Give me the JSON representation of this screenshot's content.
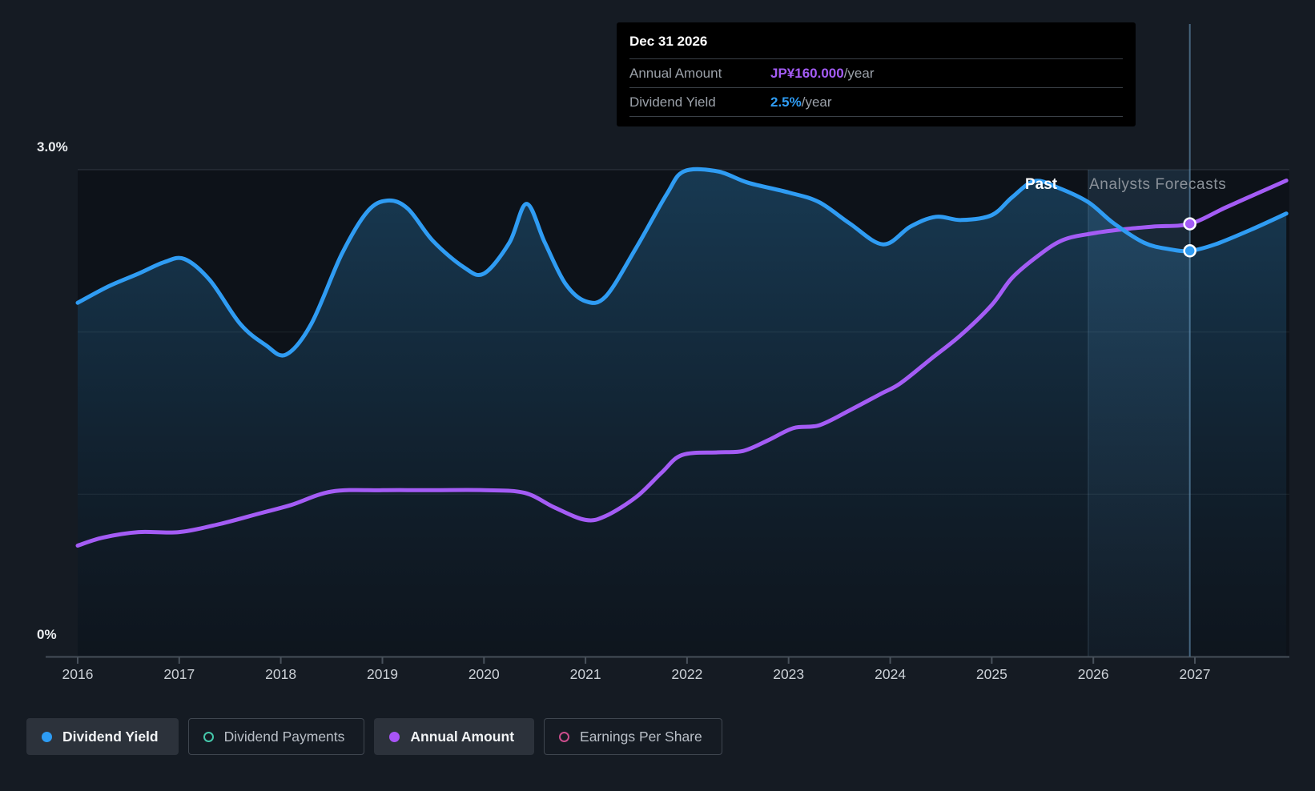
{
  "y_axis_labels": {
    "top": "3.0%",
    "bottom": "0%"
  },
  "region_labels": {
    "past": "Past",
    "forecast": "Analysts Forecasts"
  },
  "tooltip": {
    "title": "Dec 31 2026",
    "rows": [
      {
        "label": "Annual Amount",
        "value": "JP¥160.000",
        "suffix": "/year",
        "value_color": "#A45CF5"
      },
      {
        "label": "Dividend Yield",
        "value": "2.5%",
        "suffix": "/year",
        "value_color": "#2F9CF3"
      }
    ]
  },
  "legend": {
    "items": [
      {
        "label": "Dividend Yield",
        "active": true,
        "marker": "filled",
        "color": "#2D9CF4"
      },
      {
        "label": "Dividend Payments",
        "active": false,
        "marker": "ring",
        "color": "#45C8AB"
      },
      {
        "label": "Annual Amount",
        "active": true,
        "marker": "filled",
        "color": "#A854F6"
      },
      {
        "label": "Earnings Per Share",
        "active": false,
        "marker": "ring",
        "color": "#CB4D8C"
      }
    ]
  },
  "colors": {
    "page_bg": "#151B23",
    "plot_bg": "#0D1219",
    "tooltip_bg": "#000000",
    "grid": "#39424C",
    "axis": "#454E58",
    "crosshair": "#6FA3C9",
    "dividend_yield": "#2F9CF3",
    "annual_amount": "#A45CF5"
  },
  "chart_data": {
    "type": "line",
    "title": "Dividend yield history and forecast",
    "x_ticks": [
      2016,
      2017,
      2018,
      2019,
      2020,
      2021,
      2022,
      2023,
      2024,
      2025,
      2026,
      2027
    ],
    "x_range": [
      2016,
      2027.9
    ],
    "percent_axis": {
      "min": 0,
      "max": 3,
      "gridlines_pct": [
        3,
        2,
        1
      ],
      "top_label": "3.0%",
      "bottom_label": "0%"
    },
    "yen_axis": {
      "min": 0,
      "max": 180
    },
    "grid": true,
    "legend_position": "bottom",
    "past_region_end_year": 2025.95,
    "crosshair_year": 2026.95,
    "series": [
      {
        "name": "Dividend Yield",
        "axis": "percent",
        "unit": "%",
        "color": "#2F9CF3",
        "points": [
          [
            2016.0,
            2.18
          ],
          [
            2016.3,
            2.28
          ],
          [
            2016.6,
            2.36
          ],
          [
            2016.85,
            2.43
          ],
          [
            2017.05,
            2.45
          ],
          [
            2017.3,
            2.32
          ],
          [
            2017.6,
            2.05
          ],
          [
            2017.85,
            1.92
          ],
          [
            2018.05,
            1.86
          ],
          [
            2018.3,
            2.05
          ],
          [
            2018.6,
            2.48
          ],
          [
            2018.85,
            2.74
          ],
          [
            2019.05,
            2.81
          ],
          [
            2019.25,
            2.76
          ],
          [
            2019.5,
            2.56
          ],
          [
            2019.8,
            2.4
          ],
          [
            2020.0,
            2.36
          ],
          [
            2020.25,
            2.55
          ],
          [
            2020.42,
            2.79
          ],
          [
            2020.6,
            2.55
          ],
          [
            2020.8,
            2.3
          ],
          [
            2021.0,
            2.19
          ],
          [
            2021.2,
            2.22
          ],
          [
            2021.5,
            2.52
          ],
          [
            2021.8,
            2.85
          ],
          [
            2021.97,
            2.99
          ],
          [
            2022.3,
            2.99
          ],
          [
            2022.6,
            2.92
          ],
          [
            2023.0,
            2.86
          ],
          [
            2023.3,
            2.8
          ],
          [
            2023.6,
            2.67
          ],
          [
            2023.93,
            2.54
          ],
          [
            2024.2,
            2.65
          ],
          [
            2024.45,
            2.71
          ],
          [
            2024.7,
            2.69
          ],
          [
            2025.0,
            2.72
          ],
          [
            2025.2,
            2.83
          ],
          [
            2025.42,
            2.93
          ],
          [
            2025.65,
            2.89
          ],
          [
            2025.95,
            2.8
          ],
          [
            2026.2,
            2.67
          ],
          [
            2026.5,
            2.55
          ],
          [
            2026.75,
            2.51
          ],
          [
            2026.95,
            2.5
          ],
          [
            2027.2,
            2.54
          ],
          [
            2027.55,
            2.63
          ],
          [
            2027.9,
            2.73
          ]
        ]
      },
      {
        "name": "Annual Amount",
        "axis": "yen",
        "unit": "JP¥/year",
        "color": "#A45CF5",
        "points": [
          [
            2016.0,
            41
          ],
          [
            2016.25,
            44
          ],
          [
            2016.6,
            46
          ],
          [
            2017.0,
            46
          ],
          [
            2017.4,
            49
          ],
          [
            2017.8,
            53
          ],
          [
            2018.1,
            56
          ],
          [
            2018.5,
            61
          ],
          [
            2019.0,
            61.5
          ],
          [
            2019.5,
            61.5
          ],
          [
            2020.0,
            61.5
          ],
          [
            2020.4,
            60.5
          ],
          [
            2020.7,
            55
          ],
          [
            2021.0,
            50.5
          ],
          [
            2021.2,
            52
          ],
          [
            2021.5,
            59
          ],
          [
            2021.75,
            68
          ],
          [
            2021.95,
            74.5
          ],
          [
            2022.3,
            75.5
          ],
          [
            2022.55,
            76
          ],
          [
            2022.8,
            80
          ],
          [
            2023.05,
            84.5
          ],
          [
            2023.3,
            85.5
          ],
          [
            2023.6,
            91
          ],
          [
            2023.9,
            97
          ],
          [
            2024.1,
            101
          ],
          [
            2024.4,
            110
          ],
          [
            2024.7,
            119
          ],
          [
            2025.0,
            130
          ],
          [
            2025.2,
            140
          ],
          [
            2025.45,
            148
          ],
          [
            2025.7,
            154
          ],
          [
            2026.0,
            156.5
          ],
          [
            2026.3,
            158
          ],
          [
            2026.6,
            159
          ],
          [
            2026.95,
            160
          ],
          [
            2027.3,
            166
          ],
          [
            2027.6,
            171
          ],
          [
            2027.9,
            176
          ]
        ]
      }
    ],
    "markers": [
      {
        "series": "Dividend Yield",
        "year": 2026.95,
        "value": 2.5,
        "color": "#2F9CF3"
      },
      {
        "series": "Annual Amount",
        "year": 2026.95,
        "value": 160,
        "color": "#A45CF5"
      }
    ],
    "annotations": {
      "past_label": "Past",
      "forecast_label": "Analysts Forecasts"
    }
  }
}
